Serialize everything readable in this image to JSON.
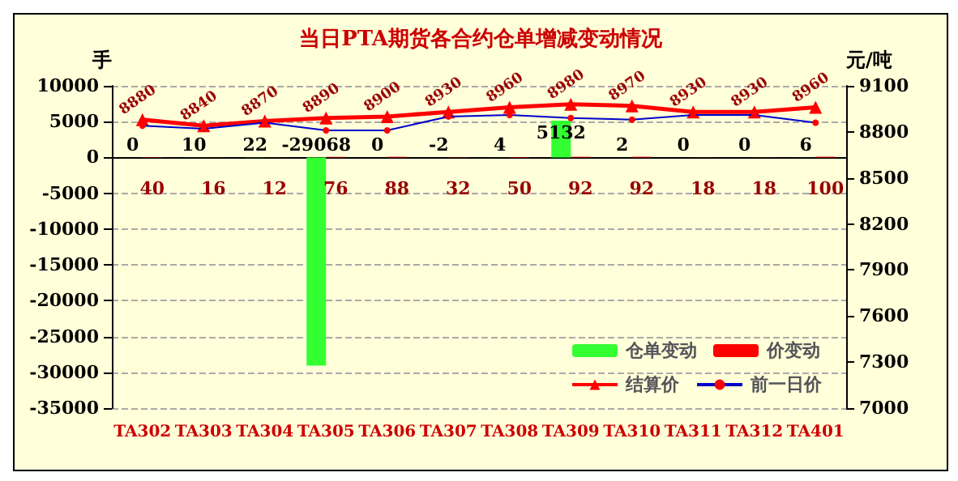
{
  "chart_data": {
    "type": "bar",
    "title": "当日PTA期货各合约仓单增减变动情况",
    "ylabel": "手",
    "y2label": "元/吨",
    "categories": [
      "TA302",
      "TA303",
      "TA304",
      "TA305",
      "TA306",
      "TA307",
      "TA308",
      "TA309",
      "TA310",
      "TA311",
      "TA312",
      "TA401"
    ],
    "series": [
      {
        "name": "仓单变动",
        "color": "#33ff33",
        "values": [
          0,
          10,
          22,
          -29068,
          0,
          -2,
          4,
          5132,
          2,
          0,
          0,
          6
        ],
        "value_labels": [
          "0",
          "10",
          "22",
          "-29068",
          "0",
          "-2",
          "4",
          "5132",
          "2",
          "0",
          "0",
          "6"
        ]
      },
      {
        "name": "价变动",
        "color": "#ff0000",
        "values": [
          40,
          16,
          12,
          76,
          88,
          32,
          50,
          92,
          92,
          18,
          18,
          100
        ],
        "value_labels": [
          "40",
          "16",
          "12",
          "76",
          "88",
          "32",
          "50",
          "92",
          "92",
          "18",
          "18",
          "100"
        ]
      },
      {
        "name": "结算价",
        "type": "line",
        "axis": "y2",
        "marker": "triangle",
        "color": "#ff0000",
        "values": [
          8880,
          8840,
          8870,
          8890,
          8900,
          8930,
          8960,
          8980,
          8970,
          8930,
          8930,
          8960
        ],
        "value_labels": [
          "8880",
          "8840",
          "8870",
          "8890",
          "8900",
          "8930",
          "8960",
          "8980",
          "8970",
          "8930",
          "8930",
          "8960"
        ]
      },
      {
        "name": "前一日价",
        "type": "line",
        "axis": "y2",
        "marker": "circle",
        "color": "#0000cc",
        "values": [
          8840,
          8820,
          8860,
          8810,
          8810,
          8900,
          8910,
          8890,
          8880,
          8910,
          8910,
          8860
        ]
      }
    ],
    "ylim": [
      -35000,
      10000
    ],
    "yticks": [
      -35000,
      -30000,
      -25000,
      -20000,
      -15000,
      -10000,
      -5000,
      0,
      5000,
      10000
    ],
    "y2lim": [
      7000,
      9100
    ],
    "y2ticks": [
      7000,
      7300,
      7600,
      7900,
      8200,
      8500,
      8800,
      9100
    ],
    "grid": "y",
    "legend": "bottom right",
    "line_style": "solid"
  }
}
